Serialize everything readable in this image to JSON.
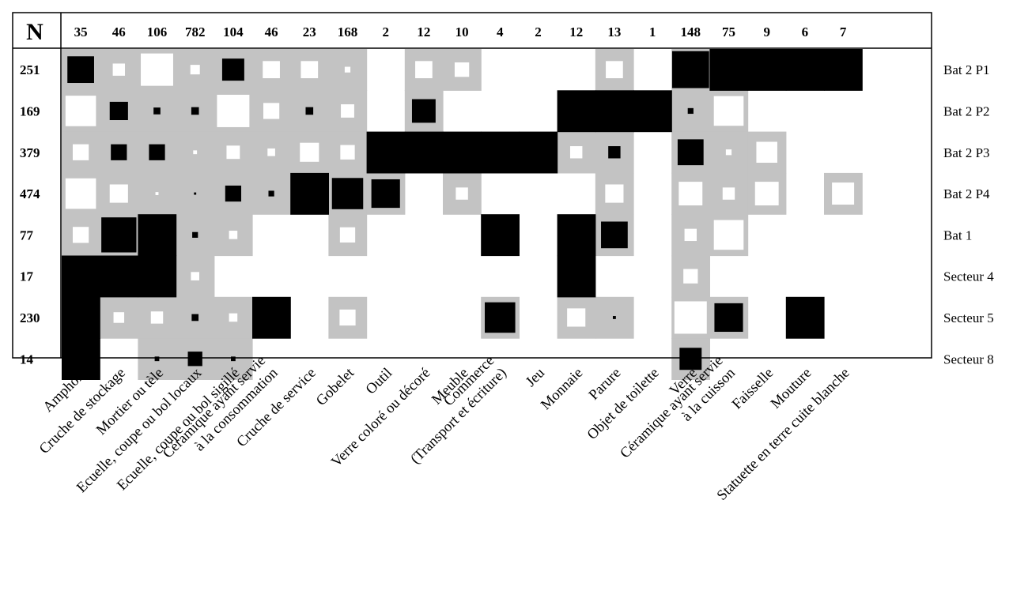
{
  "chart_data": {
    "type": "heatmap",
    "n_header": "N",
    "columns": [
      {
        "label": [
          "Amphore"
        ],
        "n": "35"
      },
      {
        "label": [
          "Cruche de stockage"
        ],
        "n": "46"
      },
      {
        "label": [
          "Mortier ou tèle"
        ],
        "n": "106"
      },
      {
        "label": [
          "Ecuelle, coupe ou bol locaux"
        ],
        "n": "782"
      },
      {
        "label": [
          "Ecuelle, coupe ou bol sigillé"
        ],
        "n": "104"
      },
      {
        "label": [
          "Céramique ayant servie",
          "à la consommation"
        ],
        "n": "46"
      },
      {
        "label": [
          "Cruche de service"
        ],
        "n": "23"
      },
      {
        "label": [
          "Gobelet"
        ],
        "n": "168"
      },
      {
        "label": [
          "Outil"
        ],
        "n": "2"
      },
      {
        "label": [
          "Verre coloré ou décoré"
        ],
        "n": "12"
      },
      {
        "label": [
          "Meuble"
        ],
        "n": "10"
      },
      {
        "label": [
          "Commerce",
          "(Transport et écriture)"
        ],
        "n": "4"
      },
      {
        "label": [
          "Jeu"
        ],
        "n": "2"
      },
      {
        "label": [
          "Monnaie"
        ],
        "n": "12"
      },
      {
        "label": [
          "Parure"
        ],
        "n": "13"
      },
      {
        "label": [
          "Objet de toilette"
        ],
        "n": "1"
      },
      {
        "label": [
          "Verre"
        ],
        "n": "148"
      },
      {
        "label": [
          "Céramique ayant servie",
          "à la cuisson"
        ],
        "n": "75"
      },
      {
        "label": [
          "Faisselle"
        ],
        "n": "9"
      },
      {
        "label": [
          "Mouture"
        ],
        "n": "6"
      },
      {
        "label": [
          "Statuette en terre cuite blanche"
        ],
        "n": "7"
      }
    ],
    "rows": [
      {
        "label": "Bat 2 P1",
        "n": "251"
      },
      {
        "label": "Bat 2 P2",
        "n": "169"
      },
      {
        "label": "Bat 2 P3",
        "n": "379"
      },
      {
        "label": "Bat 2 P4",
        "n": "474"
      },
      {
        "label": "Bat 1",
        "n": "77"
      },
      {
        "label": "Secteur 4",
        "n": "17"
      },
      {
        "label": "Secteur 5",
        "n": "230"
      },
      {
        "label": "Secteur 8",
        "n": "14"
      }
    ],
    "cell_encoding": "b = black square, w = white square on grey background; value = relative side of inner square (1 = full cell); null = empty cell",
    "colors": {
      "black": "#000000",
      "grey": "#c3c3c3",
      "white": "#ffffff"
    },
    "cells": [
      [
        {
          "c": "b",
          "s": 0.7
        },
        {
          "c": "w",
          "s": 0.32
        },
        {
          "c": "w",
          "s": 0.85
        },
        {
          "c": "w",
          "s": 0.25
        },
        {
          "c": "b",
          "s": 0.58
        },
        {
          "c": "w",
          "s": 0.45
        },
        {
          "c": "w",
          "s": 0.45
        },
        {
          "c": "w",
          "s": 0.15
        },
        null,
        {
          "c": "w",
          "s": 0.45
        },
        {
          "c": "w",
          "s": 0.38
        },
        null,
        null,
        null,
        {
          "c": "w",
          "s": 0.45
        },
        null,
        {
          "c": "b",
          "s": 0.97
        },
        {
          "c": "b",
          "s": 1
        },
        {
          "c": "b",
          "s": 1
        },
        {
          "c": "b",
          "s": 1
        },
        {
          "c": "b",
          "s": 1
        }
      ],
      [
        {
          "c": "w",
          "s": 0.8
        },
        {
          "c": "b",
          "s": 0.48
        },
        {
          "c": "b",
          "s": 0.18
        },
        {
          "c": "b",
          "s": 0.2
        },
        {
          "c": "w",
          "s": 0.85
        },
        {
          "c": "w",
          "s": 0.42
        },
        {
          "c": "b",
          "s": 0.2
        },
        {
          "c": "w",
          "s": 0.35
        },
        null,
        {
          "c": "b",
          "s": 0.62
        },
        null,
        null,
        null,
        {
          "c": "b",
          "s": 1
        },
        {
          "c": "b",
          "s": 1
        },
        {
          "c": "b",
          "s": 1
        },
        {
          "c": "b",
          "s": 0.15
        },
        {
          "c": "w",
          "s": 0.78
        },
        null,
        null,
        null
      ],
      [
        {
          "c": "w",
          "s": 0.42
        },
        {
          "c": "b",
          "s": 0.42
        },
        {
          "c": "b",
          "s": 0.42
        },
        {
          "c": "w",
          "s": 0.1
        },
        {
          "c": "w",
          "s": 0.35
        },
        {
          "c": "w",
          "s": 0.2
        },
        {
          "c": "w",
          "s": 0.5
        },
        {
          "c": "w",
          "s": 0.38
        },
        {
          "c": "b",
          "s": 1
        },
        {
          "c": "b",
          "s": 1
        },
        {
          "c": "b",
          "s": 1
        },
        {
          "c": "b",
          "s": 1
        },
        {
          "c": "b",
          "s": 1
        },
        {
          "c": "w",
          "s": 0.32
        },
        {
          "c": "b",
          "s": 0.32
        },
        null,
        {
          "c": "b",
          "s": 0.68
        },
        {
          "c": "w",
          "s": 0.15
        },
        {
          "c": "w",
          "s": 0.55
        },
        null,
        null
      ],
      [
        {
          "c": "w",
          "s": 0.8
        },
        {
          "c": "w",
          "s": 0.48
        },
        {
          "c": "w",
          "s": 0.08
        },
        {
          "c": "b",
          "s": 0.06
        },
        {
          "c": "b",
          "s": 0.42
        },
        {
          "c": "b",
          "s": 0.15
        },
        {
          "c": "b",
          "s": 1
        },
        {
          "c": "b",
          "s": 0.82
        },
        {
          "c": "b",
          "s": 0.75
        },
        null,
        {
          "c": "w",
          "s": 0.32
        },
        null,
        null,
        null,
        {
          "c": "w",
          "s": 0.48
        },
        null,
        {
          "c": "w",
          "s": 0.62
        },
        {
          "c": "w",
          "s": 0.32
        },
        {
          "c": "w",
          "s": 0.62
        },
        null,
        {
          "c": "w",
          "s": 0.58
        }
      ],
      [
        {
          "c": "w",
          "s": 0.42
        },
        {
          "c": "b",
          "s": 0.92
        },
        {
          "c": "b",
          "s": 1
        },
        {
          "c": "b",
          "s": 0.15
        },
        {
          "c": "w",
          "s": 0.22
        },
        null,
        null,
        {
          "c": "w",
          "s": 0.4
        },
        null,
        null,
        null,
        {
          "c": "b",
          "s": 1
        },
        null,
        {
          "c": "b",
          "s": 1
        },
        {
          "c": "b",
          "s": 0.7
        },
        null,
        {
          "c": "w",
          "s": 0.32
        },
        {
          "c": "w",
          "s": 0.78
        },
        null,
        null,
        null
      ],
      [
        {
          "c": "b",
          "s": 1
        },
        {
          "c": "b",
          "s": 1
        },
        {
          "c": "b",
          "s": 1
        },
        {
          "c": "w",
          "s": 0.22
        },
        null,
        null,
        null,
        null,
        null,
        null,
        null,
        null,
        null,
        {
          "c": "b",
          "s": 1
        },
        null,
        null,
        {
          "c": "w",
          "s": 0.38
        },
        null,
        null,
        null,
        null
      ],
      [
        {
          "c": "b",
          "s": 1
        },
        {
          "c": "w",
          "s": 0.28
        },
        {
          "c": "w",
          "s": 0.32
        },
        {
          "c": "b",
          "s": 0.18
        },
        {
          "c": "w",
          "s": 0.22
        },
        {
          "c": "b",
          "s": 1
        },
        null,
        {
          "c": "w",
          "s": 0.42
        },
        null,
        null,
        null,
        {
          "c": "b",
          "s": 0.8
        },
        null,
        {
          "c": "w",
          "s": 0.48
        },
        {
          "c": "b",
          "s": 0.08
        },
        null,
        {
          "c": "w",
          "s": 0.85
        },
        {
          "c": "b",
          "s": 0.75
        },
        null,
        {
          "c": "b",
          "s": 1
        },
        null
      ],
      [
        {
          "c": "b",
          "s": 1
        },
        null,
        {
          "c": "b",
          "s": 0.12
        },
        {
          "c": "b",
          "s": 0.38
        },
        {
          "c": "b",
          "s": 0.12
        },
        null,
        null,
        null,
        null,
        null,
        null,
        null,
        null,
        null,
        null,
        null,
        {
          "c": "b",
          "s": 0.58
        },
        null,
        null,
        null,
        null
      ]
    ]
  }
}
